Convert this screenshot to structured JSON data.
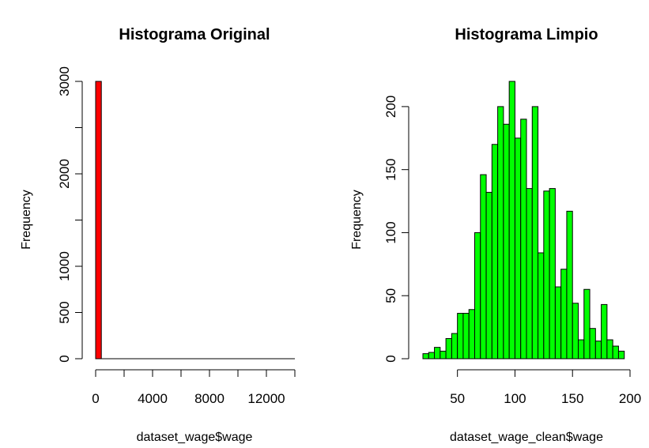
{
  "chart_data": [
    {
      "type": "bar",
      "title": "Histograma Original",
      "xlabel": "dataset_wage$wage",
      "ylabel": "Frequency",
      "bar_color": "#ff0000",
      "xlim": [
        0,
        14000
      ],
      "ylim": [
        0,
        3000
      ],
      "x_ticks": [
        0,
        4000,
        8000,
        12000
      ],
      "x_tick_labels": [
        "0",
        "4000",
        "8000",
        "12000"
      ],
      "y_ticks": [
        0,
        500,
        1000,
        2000,
        3000
      ],
      "y_tick_labels": [
        "0",
        "500",
        "1000",
        "2000",
        "3000"
      ],
      "bin_width": 400,
      "bin_starts": [
        0
      ],
      "values": [
        3000
      ]
    },
    {
      "type": "bar",
      "title": "Histograma Limpio",
      "xlabel": "dataset_wage_clean$wage",
      "ylabel": "Frequency",
      "bar_color": "#00ff00",
      "xlim": [
        20,
        200
      ],
      "ylim": [
        0,
        220
      ],
      "x_ticks": [
        50,
        100,
        150,
        200
      ],
      "x_tick_labels": [
        "50",
        "100",
        "150",
        "200"
      ],
      "y_ticks": [
        0,
        50,
        100,
        150,
        200
      ],
      "y_tick_labels": [
        "0",
        "50",
        "100",
        "150",
        "200"
      ],
      "bin_width": 5,
      "bin_starts": [
        20,
        25,
        30,
        35,
        40,
        45,
        50,
        55,
        60,
        65,
        70,
        75,
        80,
        85,
        90,
        95,
        100,
        105,
        110,
        115,
        120,
        125,
        130,
        135,
        140,
        145,
        150,
        155,
        160,
        165,
        170,
        175,
        180,
        185,
        190
      ],
      "values": [
        4,
        5,
        9,
        6,
        16,
        20,
        36,
        36,
        39,
        100,
        146,
        132,
        170,
        200,
        186,
        220,
        175,
        190,
        135,
        200,
        84,
        133,
        135,
        57,
        71,
        117,
        44,
        15,
        55,
        24,
        14,
        43,
        15,
        10,
        6
      ]
    }
  ]
}
